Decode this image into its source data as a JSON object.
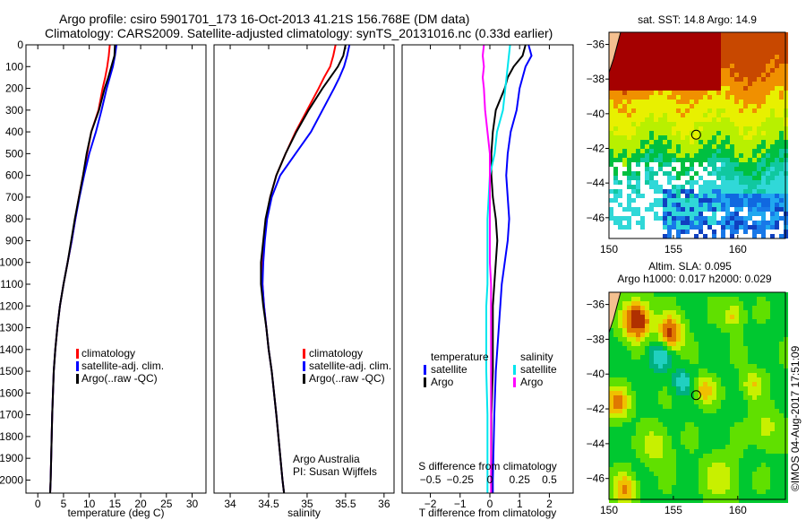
{
  "header": {
    "line1": "Argo profile: csiro 5901701_173 16-Oct-2013 41.21S 156.768E (DM data)",
    "line2": "Climatology: CARS2009. Satellite-adjusted climatology: synTS_20131016.nc (0.33d earlier)"
  },
  "footer": {
    "stamp": "©IMOS 04-Aug-2017 17:51:09",
    "credit1": "Argo Australia",
    "credit2": "PI: Susan Wijffels"
  },
  "chart_data": [
    {
      "type": "line",
      "xlabel": "temperature (deg C)",
      "xlim": [
        -2.3,
        32.7
      ],
      "ylim": [
        0,
        2060
      ],
      "yreversed": true,
      "xticks": [
        0,
        5,
        10,
        15,
        20,
        25,
        30
      ],
      "yticks": [
        0,
        100,
        200,
        300,
        400,
        500,
        600,
        700,
        800,
        900,
        1000,
        1100,
        1200,
        1300,
        1400,
        1500,
        1600,
        1700,
        1800,
        1900,
        2000
      ],
      "legend": [
        "climatology",
        "satellite-adj. clim.",
        "Argo(..raw -QC)"
      ],
      "depth": [
        0,
        50,
        100,
        150,
        200,
        300,
        400,
        500,
        600,
        700,
        800,
        900,
        1000,
        1100,
        1200,
        1300,
        1400,
        1500,
        1700,
        2000,
        2060
      ],
      "series": [
        {
          "name": "climatology",
          "color": "#ff0000",
          "values": [
            14.0,
            13.8,
            13.5,
            13.1,
            12.6,
            11.8,
            10.4,
            9.6,
            8.8,
            8.0,
            7.3,
            6.6,
            5.8,
            5.0,
            4.3,
            3.8,
            3.4,
            3.1,
            2.8,
            2.5,
            2.4
          ]
        },
        {
          "name": "satellite-adj. clim.",
          "color": "#0000ff",
          "values": [
            15.3,
            15.0,
            14.6,
            14.0,
            13.4,
            12.4,
            11.3,
            10.0,
            9.0,
            8.1,
            7.3,
            6.6,
            5.8,
            5.0,
            4.3,
            3.8,
            3.4,
            3.1,
            2.8,
            2.5,
            2.4
          ]
        },
        {
          "name": "Argo(..raw -QC)",
          "color": "#000000",
          "values": [
            15.0,
            14.9,
            14.3,
            13.7,
            13.0,
            11.9,
            10.4,
            9.5,
            8.8,
            8.0,
            7.2,
            6.5,
            5.8,
            5.0,
            4.3,
            3.8,
            3.4,
            3.1,
            2.8,
            2.5,
            2.4
          ]
        }
      ]
    },
    {
      "type": "line",
      "xlabel": "salinity",
      "xlim": [
        33.79,
        36.13
      ],
      "ylim": [
        0,
        2060
      ],
      "yreversed": true,
      "xticks": [
        34,
        34.5,
        35,
        35.5,
        36
      ],
      "legend": [
        "climatology",
        "satellite-adj. clim.",
        "Argo(..raw -QC)"
      ],
      "depth": [
        0,
        50,
        100,
        150,
        200,
        300,
        400,
        500,
        600,
        700,
        800,
        900,
        1000,
        1100,
        1200,
        1300,
        1400,
        1500,
        1700,
        2000,
        2060
      ],
      "series": [
        {
          "name": "climatology",
          "color": "#ff0000",
          "values": [
            35.37,
            35.34,
            35.3,
            35.22,
            35.15,
            35.0,
            34.85,
            34.72,
            34.6,
            34.52,
            34.47,
            34.44,
            34.42,
            34.42,
            34.44,
            34.47,
            34.5,
            34.54,
            34.6,
            34.68,
            34.7
          ]
        },
        {
          "name": "satellite-adj. clim.",
          "color": "#0000ff",
          "values": [
            35.55,
            35.52,
            35.48,
            35.42,
            35.35,
            35.2,
            35.05,
            34.85,
            34.65,
            34.54,
            34.48,
            34.45,
            34.43,
            34.42,
            34.44,
            34.47,
            34.5,
            34.54,
            34.6,
            34.68,
            34.7
          ]
        },
        {
          "name": "Argo(..raw -QC)",
          "color": "#000000",
          "values": [
            35.5,
            35.47,
            35.4,
            35.3,
            35.2,
            35.02,
            34.86,
            34.72,
            34.6,
            34.52,
            34.46,
            34.43,
            34.4,
            34.4,
            34.43,
            34.47,
            34.5,
            34.54,
            34.6,
            34.68,
            34.7
          ]
        }
      ]
    },
    {
      "type": "line",
      "xlabel": "T difference from climatology",
      "x2label": "S difference from climatology",
      "xlim": [
        -2.95,
        2.8
      ],
      "ylim": [
        0,
        2060
      ],
      "yreversed": true,
      "xticks": [
        -2,
        -1,
        0,
        1,
        2
      ],
      "x2ticks": [
        -0.5,
        -0.25,
        0,
        0.25,
        0.5
      ],
      "legend_titles": [
        "temperature",
        "salinity"
      ],
      "legend": [
        "satellite",
        "Argo",
        "satellite",
        "Argo"
      ],
      "depth": [
        0,
        50,
        100,
        150,
        200,
        300,
        400,
        500,
        600,
        700,
        800,
        900,
        1000,
        1100,
        1200,
        1300,
        1400,
        1500,
        1700,
        2000,
        2060
      ],
      "series": [
        {
          "name": "temperature satellite",
          "color": "#0000ff",
          "values": [
            1.3,
            1.4,
            1.2,
            1.1,
            1.0,
            0.9,
            0.7,
            0.6,
            0.55,
            0.6,
            0.65,
            0.6,
            0.5,
            0.4,
            0.35,
            0.3,
            0.25,
            0.2,
            0.15,
            0.1,
            0.1
          ]
        },
        {
          "name": "temperature Argo",
          "color": "#000000",
          "values": [
            1.2,
            1.1,
            0.8,
            0.6,
            0.5,
            0.2,
            0.1,
            0.05,
            0.05,
            0.1,
            0.2,
            0.25,
            0.2,
            0.15,
            0.1,
            0.1,
            0.1,
            0.1,
            0.05,
            0.05,
            0.05
          ]
        },
        {
          "name": "salinity satellite",
          "units": "S",
          "color": "#00e5ee",
          "values": [
            0.17,
            0.16,
            0.15,
            0.14,
            0.13,
            0.11,
            0.06,
            0.04,
            0.0,
            -0.01,
            -0.02,
            -0.02,
            -0.02,
            -0.02,
            -0.03,
            -0.03,
            -0.03,
            -0.03,
            -0.02,
            -0.02,
            -0.02
          ]
        },
        {
          "name": "salinity Argo",
          "units": "S",
          "color": "#ff00ff",
          "values": [
            -0.05,
            -0.06,
            -0.05,
            -0.06,
            -0.05,
            -0.04,
            -0.02,
            0.0,
            0.0,
            0.0,
            0.0,
            0.0,
            0.0,
            0.01,
            0.01,
            0.01,
            0.01,
            0.01,
            0.01,
            0.01,
            0.01
          ]
        }
      ]
    },
    {
      "type": "heatmap",
      "title": "sat. SST: 14.8 Argo: 14.9",
      "xlim": [
        150,
        163.7
      ],
      "ylim": [
        -47.2,
        -35.3
      ],
      "xticks": [
        150,
        155,
        160
      ],
      "yticks": [
        -36,
        -38,
        -40,
        -42,
        -44,
        -46
      ],
      "float_position": {
        "lon": 156.768,
        "lat": -41.21
      }
    },
    {
      "type": "heatmap",
      "title": "Altim. SLA: 0.095",
      "subtitle": "Argo h1000: 0.017 h2000: 0.029",
      "xlim": [
        150,
        163.7
      ],
      "ylim": [
        -47.2,
        -35.3
      ],
      "xticks": [
        150,
        155,
        160
      ],
      "yticks": [
        -36,
        -38,
        -40,
        -42,
        -44,
        -46
      ],
      "float_position": {
        "lon": 156.768,
        "lat": -41.21
      }
    }
  ]
}
